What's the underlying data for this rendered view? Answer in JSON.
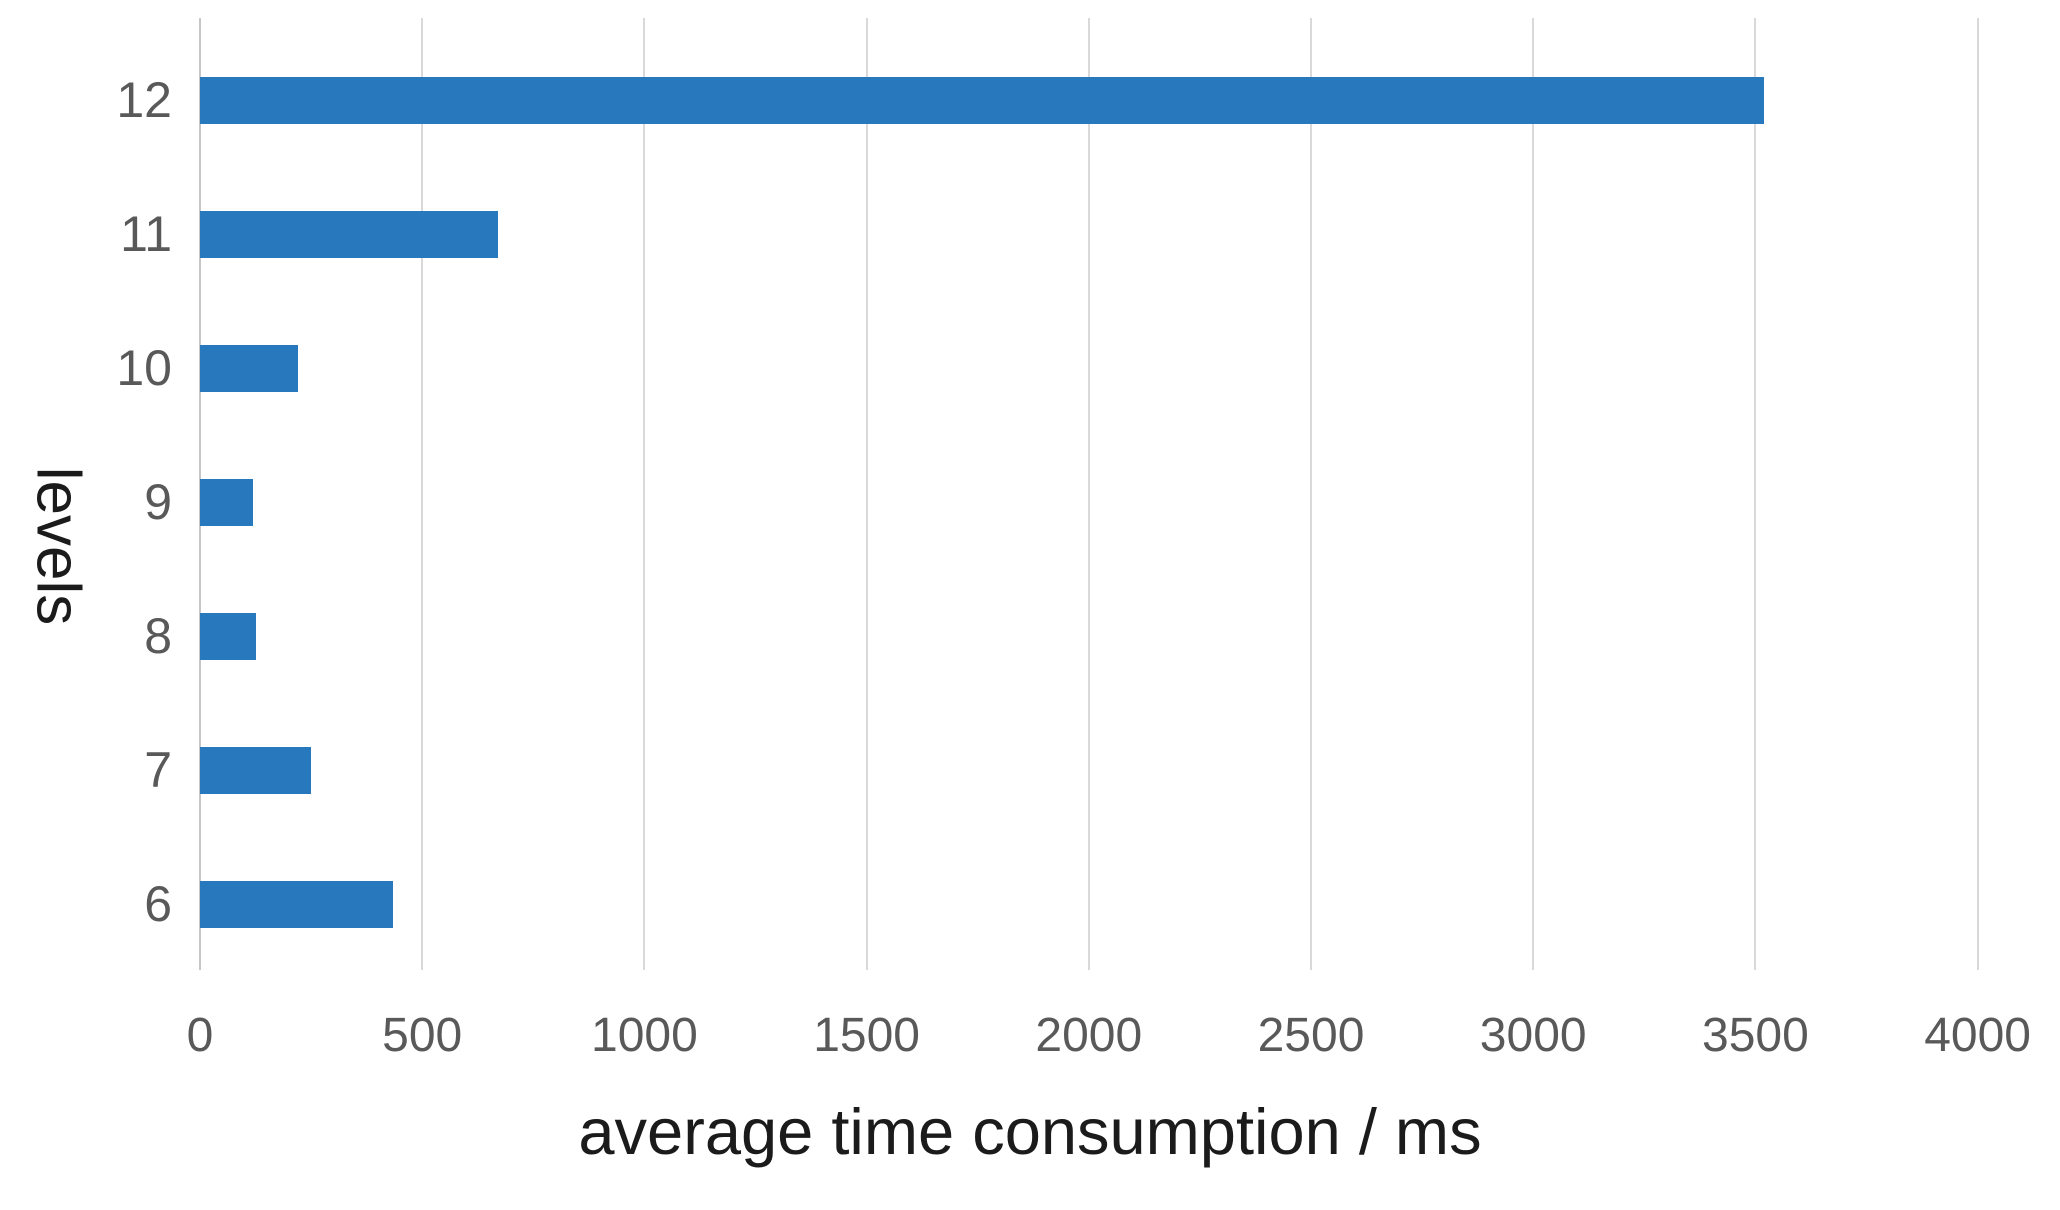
{
  "chart_data": {
    "type": "bar",
    "orientation": "horizontal",
    "title": "",
    "categories": [
      "12",
      "11",
      "10",
      "9",
      "8",
      "7",
      "6"
    ],
    "values": [
      3520,
      670,
      220,
      120,
      125,
      250,
      435
    ],
    "xlabel": "average time consumption / ms",
    "ylabel": "levels",
    "xlim": [
      0,
      4000
    ],
    "x_ticks": [
      0,
      500,
      1000,
      1500,
      2000,
      2500,
      3000,
      3500,
      4000
    ],
    "grid": "vertical-gridlines-on",
    "legend": "none",
    "colors": {
      "bar": "#2878be",
      "gridline": "#d9d9d9",
      "zero_gridline": "#c6c6c6",
      "tick_label": "#595959",
      "axis_title": "#1b1b1b",
      "background": "#ffffff"
    }
  }
}
